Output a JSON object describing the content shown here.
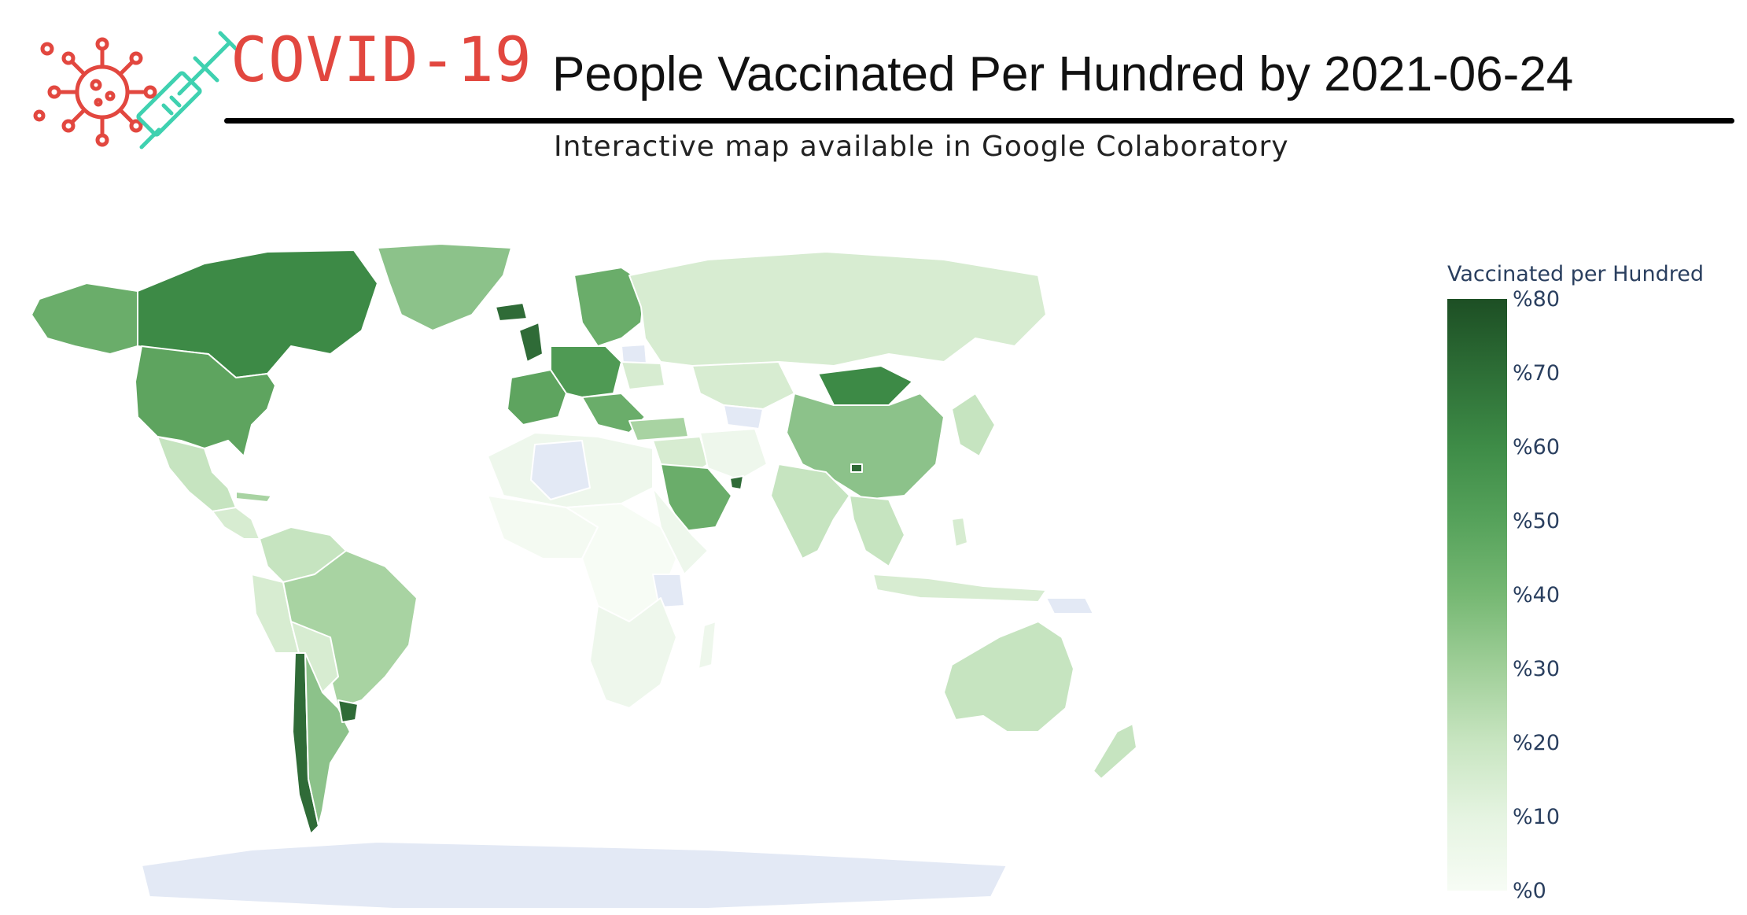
{
  "header": {
    "brand": "COVID-19",
    "title": "People Vaccinated Per Hundred by 2021-06-24",
    "subtitle": "Interactive map available in Google Colaboratory"
  },
  "colors": {
    "brand_red": "#e2473f",
    "syringe_teal": "#3fd1b0",
    "no_data": "#e3e9f5",
    "ocean": "#ffffff",
    "scale_low": "#f7fcf5",
    "scale_high": "#1d4f24"
  },
  "icons": {
    "virus": "virus-icon",
    "syringe": "syringe-icon"
  },
  "legend": {
    "title": "Vaccinated per Hundred",
    "range": [
      0,
      80
    ],
    "ticks": [
      {
        "value": 80,
        "label": "%80"
      },
      {
        "value": 70,
        "label": "%70"
      },
      {
        "value": 60,
        "label": "%60"
      },
      {
        "value": 50,
        "label": "%50"
      },
      {
        "value": 40,
        "label": "%40"
      },
      {
        "value": 30,
        "label": "%30"
      },
      {
        "value": 20,
        "label": "%20"
      },
      {
        "value": 10,
        "label": "%10"
      },
      {
        "value": 0,
        "label": "%0"
      }
    ]
  }
}
